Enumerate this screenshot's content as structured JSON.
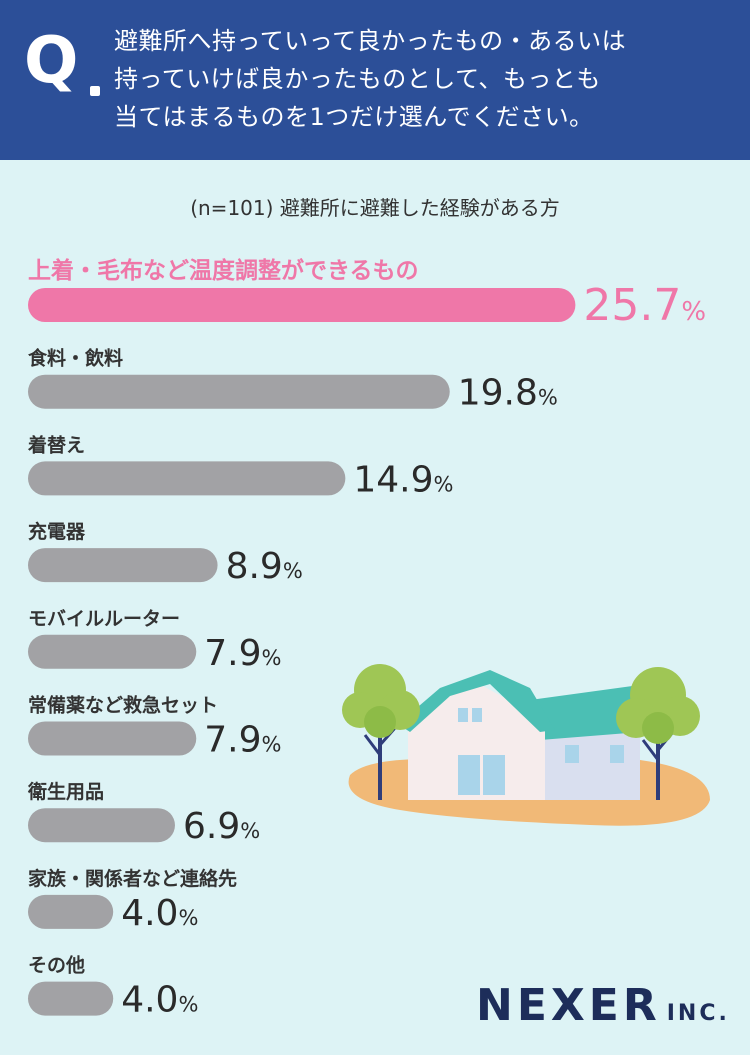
{
  "header": {
    "q_mark": "Q",
    "question_lines": [
      "避難所へ持っていって良かったもの・あるいは",
      "持っていけば良かったものとして、もっとも",
      "当てはまるものを1つだけ選んでください。"
    ]
  },
  "subtitle": "(n=101) 避難所に避難した経験がある方",
  "logo": {
    "main": "NEXER",
    "suffix": "INC."
  },
  "colors": {
    "highlight": "#ef77a8",
    "bar": "#a2a2a5",
    "header": "#2c4f98",
    "background": "#ddf3f5"
  },
  "chart_data": {
    "type": "bar",
    "orientation": "horizontal",
    "unit": "%",
    "categories": [
      "上着・毛布など温度調整ができるもの",
      "食料・飲料",
      "着替え",
      "充電器",
      "モバイルルーター",
      "常備薬など救急セット",
      "衛生用品",
      "家族・関係者など連絡先",
      "その他"
    ],
    "values": [
      25.7,
      19.8,
      14.9,
      8.9,
      7.9,
      7.9,
      6.9,
      4.0,
      4.0
    ],
    "value_labels": [
      "25.7",
      "19.8",
      "14.9",
      "8.9",
      "7.9",
      "7.9",
      "6.9",
      "4.0",
      "4.0"
    ],
    "highlight_index": 0
  }
}
